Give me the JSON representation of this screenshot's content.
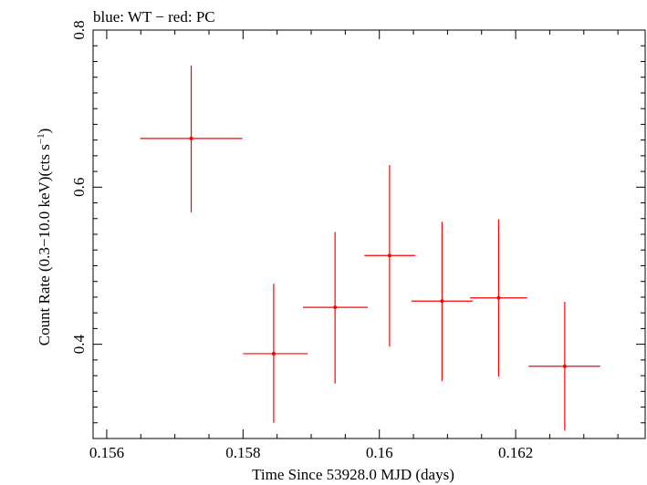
{
  "chart_data": {
    "type": "scatter",
    "title": "blue: WT − red: PC",
    "xlabel": "Time Since 53928.0 MJD (days)",
    "ylabel_main": "Count Rate (0.3−10.0 keV)(cts s",
    "ylabel_sup": "−1",
    "ylabel_end": ")",
    "xlim": [
      0.1558,
      0.1639
    ],
    "ylim": [
      0.28,
      0.8
    ],
    "x_ticks": [
      {
        "value": 0.156,
        "label": "0.156"
      },
      {
        "value": 0.158,
        "label": "0.158"
      },
      {
        "value": 0.16,
        "label": "0.16"
      },
      {
        "value": 0.162,
        "label": "0.162"
      }
    ],
    "x_minor_ticks": [
      0.1565,
      0.157,
      0.1575,
      0.1585,
      0.159,
      0.1595,
      0.1605,
      0.161,
      0.1615,
      0.1625,
      0.163,
      0.1635
    ],
    "y_ticks": [
      {
        "value": 0.4,
        "label": "0.4"
      },
      {
        "value": 0.6,
        "label": "0.6"
      },
      {
        "value": 0.8,
        "label": "0.8"
      }
    ],
    "y_minor_ticks": [
      0.3,
      0.32,
      0.34,
      0.36,
      0.38,
      0.42,
      0.44,
      0.46,
      0.48,
      0.5,
      0.52,
      0.54,
      0.56,
      0.58,
      0.62,
      0.64,
      0.66,
      0.68,
      0.7,
      0.72,
      0.74,
      0.76,
      0.78
    ],
    "series": [
      {
        "color": "#ff0000",
        "points": [
          {
            "x": 0.15724,
            "y": 0.662,
            "xerr_lo": 0.00075,
            "xerr_hi": 0.00075,
            "yerr_lo": 0.094,
            "yerr_hi": 0.093
          },
          {
            "x": 0.15845,
            "y": 0.388,
            "xerr_lo": 0.00045,
            "xerr_hi": 0.0005,
            "yerr_lo": 0.088,
            "yerr_hi": 0.089
          },
          {
            "x": 0.15935,
            "y": 0.447,
            "xerr_lo": 0.00047,
            "xerr_hi": 0.00048,
            "yerr_lo": 0.097,
            "yerr_hi": 0.096
          },
          {
            "x": 0.16015,
            "y": 0.513,
            "xerr_lo": 0.00037,
            "xerr_hi": 0.00038,
            "yerr_lo": 0.116,
            "yerr_hi": 0.115
          },
          {
            "x": 0.16092,
            "y": 0.455,
            "xerr_lo": 0.00045,
            "xerr_hi": 0.00045,
            "yerr_lo": 0.102,
            "yerr_hi": 0.101
          },
          {
            "x": 0.16175,
            "y": 0.459,
            "xerr_lo": 0.00042,
            "xerr_hi": 0.00042,
            "yerr_lo": 0.1,
            "yerr_hi": 0.1
          },
          {
            "x": 0.16272,
            "y": 0.372,
            "xerr_lo": 0.00053,
            "xerr_hi": 0.00052,
            "yerr_lo": 0.082,
            "yerr_hi": 0.082
          }
        ]
      }
    ],
    "grid": false,
    "legend": "none"
  }
}
